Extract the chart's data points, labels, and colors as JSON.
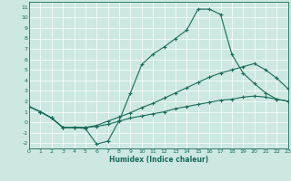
{
  "title": "",
  "xlabel": "Humidex (Indice chaleur)",
  "bg_color": "#cce8e0",
  "grid_color": "#ffffff",
  "line_color": "#1a6b5a",
  "xlim": [
    0,
    23
  ],
  "ylim": [
    -2.5,
    11.5
  ],
  "xticks": [
    0,
    1,
    2,
    3,
    4,
    5,
    6,
    7,
    8,
    9,
    10,
    11,
    12,
    13,
    14,
    15,
    16,
    17,
    18,
    19,
    20,
    21,
    22,
    23
  ],
  "yticks": [
    -2,
    -1,
    0,
    1,
    2,
    3,
    4,
    5,
    6,
    7,
    8,
    9,
    10,
    11
  ],
  "line1_x": [
    0,
    1,
    2,
    3,
    4,
    5,
    6,
    7,
    8,
    9,
    10,
    11,
    12,
    13,
    14,
    15,
    16,
    17,
    18,
    19,
    20,
    21,
    22,
    23
  ],
  "line1_y": [
    1.5,
    1.0,
    0.4,
    -0.5,
    -0.5,
    -0.6,
    -2.1,
    -1.8,
    0.15,
    2.8,
    5.5,
    6.5,
    7.2,
    8.0,
    8.8,
    10.8,
    10.8,
    10.3,
    6.5,
    4.7,
    3.7,
    2.8,
    2.2,
    2.0
  ],
  "line1_markers_x": [
    0,
    1,
    3,
    4,
    6,
    7,
    9,
    10,
    11,
    12,
    13,
    14,
    15,
    16,
    17,
    18,
    19,
    20,
    21,
    22,
    23
  ],
  "line2_x": [
    0,
    1,
    2,
    3,
    4,
    5,
    6,
    7,
    8,
    9,
    10,
    11,
    12,
    13,
    14,
    15,
    16,
    17,
    18,
    19,
    20,
    21,
    22,
    23
  ],
  "line2_y": [
    1.5,
    1.0,
    0.4,
    -0.5,
    -0.5,
    -0.5,
    -0.3,
    0.1,
    0.5,
    0.9,
    1.4,
    1.8,
    2.3,
    2.8,
    3.3,
    3.8,
    4.3,
    4.7,
    5.0,
    5.3,
    5.6,
    5.0,
    4.2,
    3.2
  ],
  "line3_x": [
    0,
    1,
    2,
    3,
    4,
    5,
    6,
    7,
    8,
    9,
    10,
    11,
    12,
    13,
    14,
    15,
    16,
    17,
    18,
    19,
    20,
    21,
    22,
    23
  ],
  "line3_y": [
    1.5,
    1.0,
    0.4,
    -0.5,
    -0.5,
    -0.5,
    -0.4,
    -0.2,
    0.1,
    0.4,
    0.6,
    0.8,
    1.0,
    1.3,
    1.5,
    1.7,
    1.9,
    2.1,
    2.2,
    2.4,
    2.5,
    2.4,
    2.2,
    2.0
  ]
}
